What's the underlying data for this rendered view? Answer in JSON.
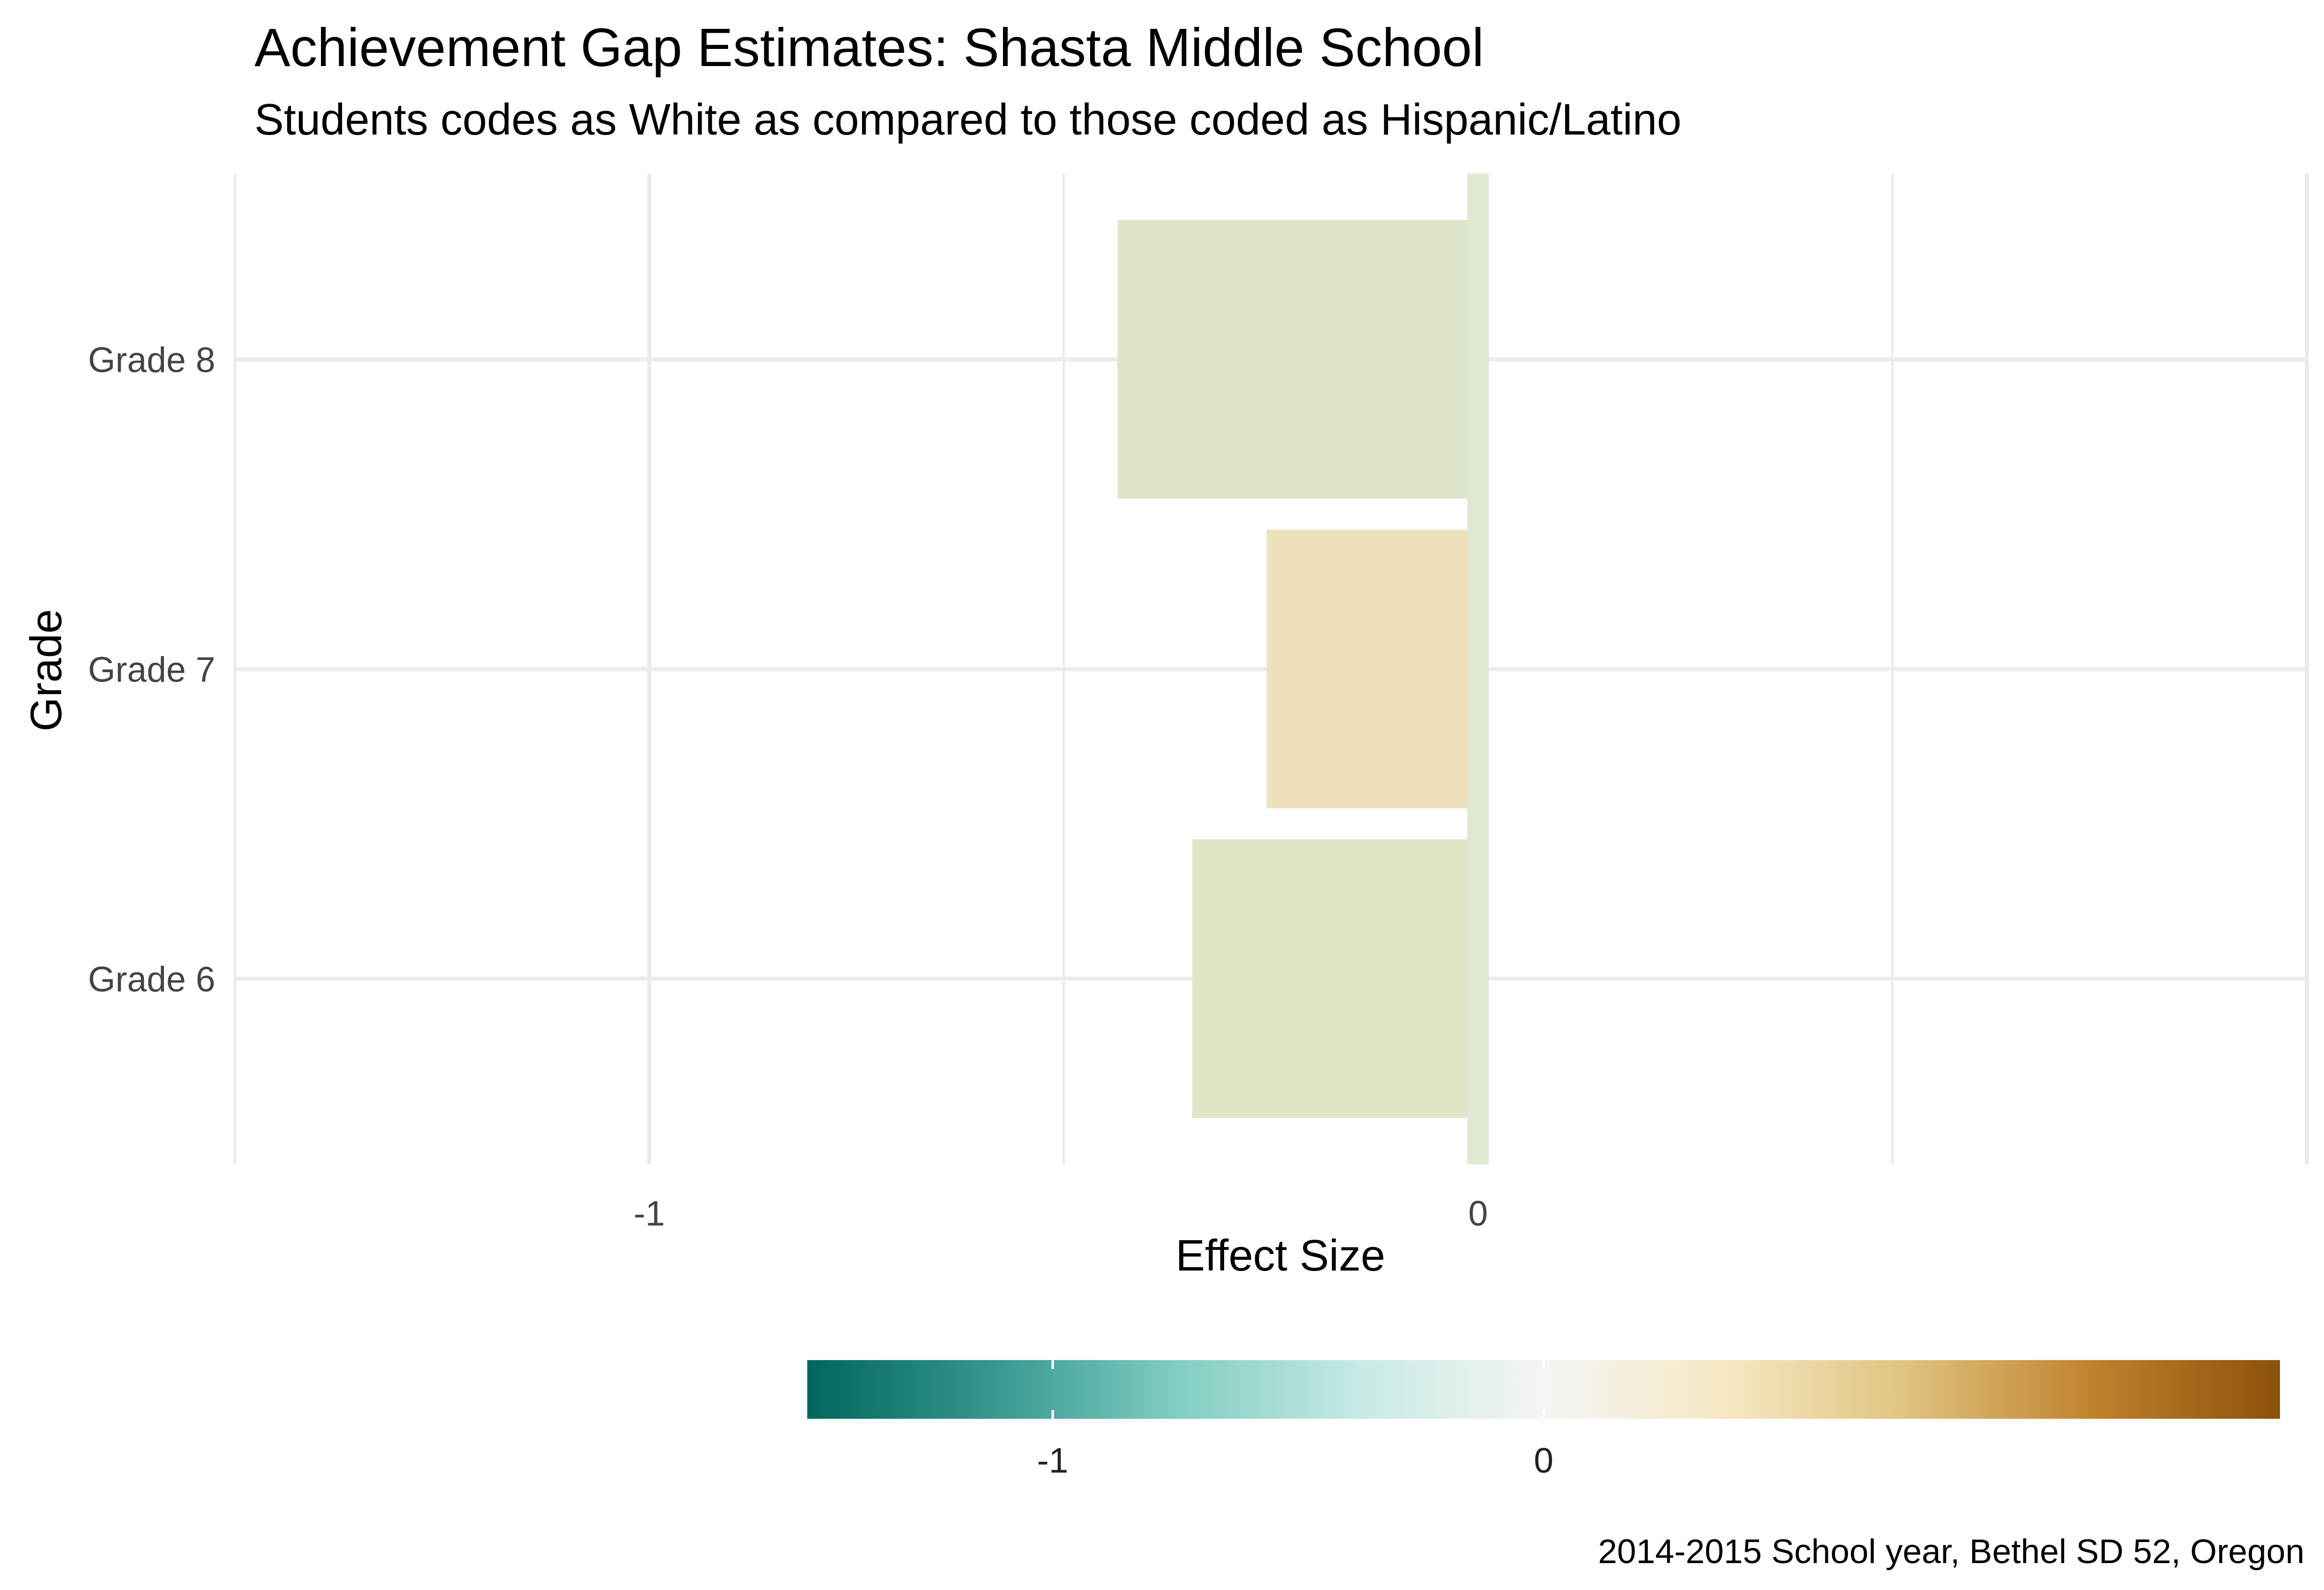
{
  "chart_data": {
    "type": "bar",
    "orientation": "horizontal",
    "title": "Achievement Gap Estimates: Shasta Middle School",
    "subtitle": "Students codes as White as compared to those coded as Hispanic/Latino",
    "caption": "2014-2015 School year, Bethel SD 52, Oregon",
    "xlabel": "Effect Size",
    "ylabel": "Grade",
    "categories": [
      "Grade 6",
      "Grade 7",
      "Grade 8"
    ],
    "values": [
      -0.345,
      -0.255,
      -0.435
    ],
    "xlim": [
      -1.5,
      1.0
    ],
    "x_ticks": [
      -1,
      0
    ],
    "x_tick_labels": [
      "-1",
      "0"
    ],
    "grid": true,
    "reference_line": {
      "x": 0,
      "color": "#dfe8d3"
    },
    "bar_colors": [
      "#e3e5c6",
      "#eee2bd",
      "#dee5c9"
    ],
    "legend": {
      "type": "colorbar",
      "placement": "bottom",
      "range": [
        -1.5,
        1.5
      ],
      "ticks": [
        -1,
        0
      ],
      "tick_labels": [
        "-1",
        "0"
      ],
      "palette": [
        "#01665e",
        "#35978f",
        "#80cdc1",
        "#c7eae5",
        "#f5f5f5",
        "#f6e8c3",
        "#dfc27d",
        "#bf812d",
        "#8c510a"
      ]
    }
  }
}
